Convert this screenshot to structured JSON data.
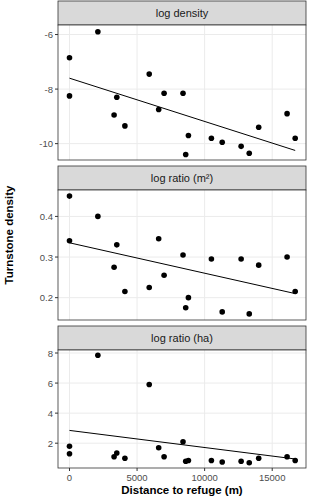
{
  "chart_data": [
    {
      "type": "scatter",
      "title": "log density",
      "x": [
        0,
        0,
        2100,
        3300,
        3500,
        4100,
        5900,
        6600,
        7000,
        8400,
        8600,
        8800,
        10500,
        11300,
        12700,
        13300,
        14000,
        16100,
        16700
      ],
      "values": [
        -6.85,
        -8.25,
        -5.9,
        -8.95,
        -8.3,
        -9.35,
        -7.45,
        -8.75,
        -8.15,
        -8.15,
        -10.4,
        -9.7,
        -9.8,
        -9.95,
        -10.1,
        -10.35,
        -9.4,
        -8.9,
        -9.8
      ],
      "fit_x": [
        0,
        16700
      ],
      "fit_values": [
        -7.6,
        -10.25
      ],
      "xlim": [
        -850,
        17500
      ],
      "ylim": [
        -10.6,
        -5.65
      ],
      "xticks": [
        0,
        5000,
        10000,
        15000
      ],
      "yticks": [
        -10,
        -8,
        -6
      ],
      "grid": true,
      "tick_labels": "y",
      "color": "#000000"
    },
    {
      "type": "scatter",
      "title": "log ratio (m²)",
      "y_label": "Turnstone density",
      "x": [
        0,
        0,
        2100,
        3300,
        3500,
        4100,
        5900,
        6600,
        7000,
        8400,
        8600,
        8800,
        10500,
        11300,
        12700,
        13300,
        14000,
        16100,
        16700
      ],
      "values": [
        0.45,
        0.34,
        0.4,
        0.275,
        0.33,
        0.215,
        0.225,
        0.345,
        0.255,
        0.305,
        0.175,
        0.2,
        0.295,
        0.165,
        0.295,
        0.16,
        0.28,
        0.3,
        0.215
      ],
      "fit_x": [
        0,
        16700
      ],
      "fit_values": [
        0.335,
        0.21
      ],
      "xlim": [
        -850,
        17500
      ],
      "ylim": [
        0.145,
        0.465
      ],
      "xticks": [
        0,
        5000,
        10000,
        15000
      ],
      "yticks": [
        0.2,
        0.3,
        0.4
      ],
      "grid": true,
      "tick_labels": "y",
      "color": "#000000"
    },
    {
      "type": "scatter",
      "title": "log ratio (ha)",
      "x_label": "Distance to refuge (m)",
      "x": [
        0,
        0,
        2100,
        3300,
        3500,
        4100,
        5900,
        6600,
        7000,
        8400,
        8600,
        8800,
        10500,
        11300,
        12700,
        13300,
        14000,
        16100,
        16700
      ],
      "values": [
        1.8,
        1.3,
        7.85,
        1.1,
        1.35,
        1.0,
        5.9,
        1.7,
        1.1,
        2.1,
        0.8,
        0.85,
        0.85,
        0.75,
        0.8,
        0.7,
        1.0,
        1.1,
        0.85
      ],
      "fit_x": [
        0,
        16700
      ],
      "fit_values": [
        2.85,
        0.95
      ],
      "xlim": [
        -850,
        17500
      ],
      "ylim": [
        0.35,
        8.2
      ],
      "xticks": [
        0,
        5000,
        10000,
        15000
      ],
      "yticks": [
        2,
        4,
        6,
        8
      ],
      "grid": true,
      "tick_labels": true,
      "color": "#000000"
    }
  ]
}
